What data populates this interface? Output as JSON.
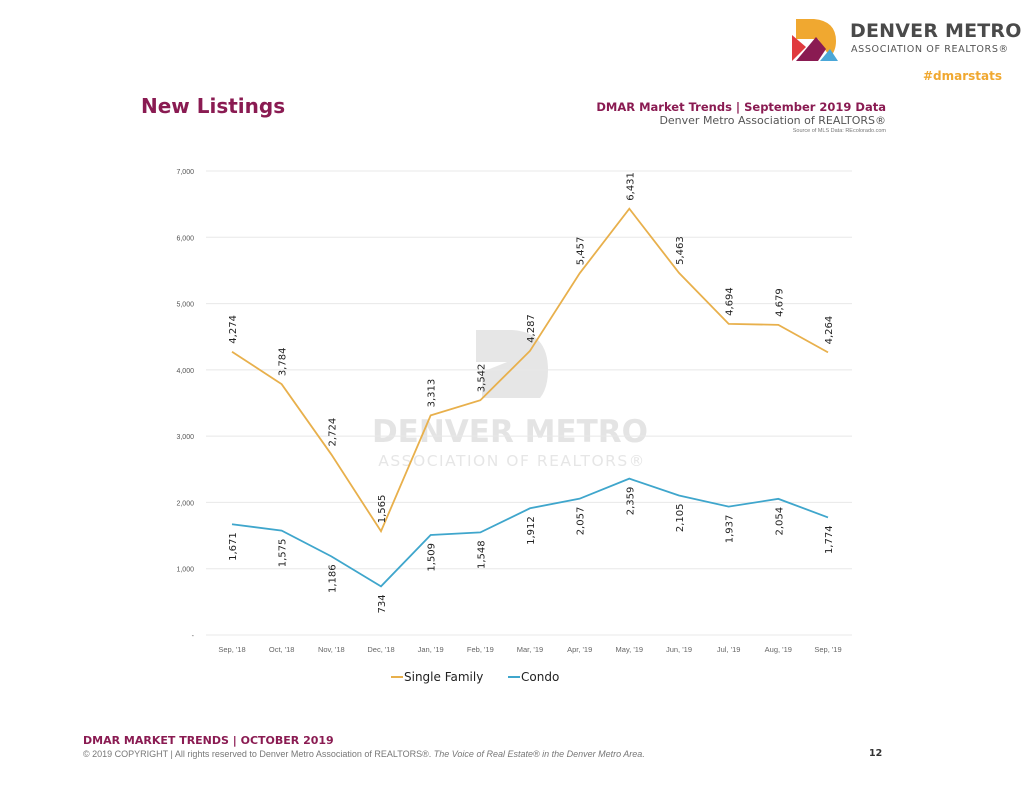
{
  "header": {
    "brand_name": "DENVER METRO",
    "brand_sub": "ASSOCIATION OF REALTORS®",
    "hashtag": "#dmarstats",
    "page_title": "New Listings",
    "report_title": "DMAR Market Trends | September 2019 Data",
    "report_sub": "Denver Metro Association of REALTORS®",
    "source": "Source of MLS Data: REcolorado.com",
    "logo_colors": {
      "orange": "#f0a830",
      "red": "#e03a3e",
      "purple": "#8a1b52",
      "blue": "#4aa7d8"
    }
  },
  "watermark": {
    "line1": "DENVER METRO",
    "line2": "ASSOCIATION OF REALTORS®"
  },
  "chart_data": {
    "type": "line",
    "title": "New Listings",
    "xlabel": "",
    "ylabel": "",
    "categories": [
      "Sep, '18",
      "Oct, '18",
      "Nov, '18",
      "Dec, '18",
      "Jan, '19",
      "Feb, '19",
      "Mar, '19",
      "Apr, '19",
      "May, '19",
      "Jun, '19",
      "Jul, '19",
      "Aug, '19",
      "Sep, '19"
    ],
    "series": [
      {
        "name": "Single Family",
        "color": "#e8b04c",
        "values": [
          4274,
          3784,
          2724,
          1565,
          3313,
          3542,
          4287,
          5457,
          6431,
          5463,
          4694,
          4679,
          4264
        ],
        "labels": [
          "4,274",
          "3,784",
          "2,724",
          "1,565",
          "3,313",
          "3,542",
          "4,287",
          "5,457",
          "6,431",
          "5,463",
          "4,694",
          "4,679",
          "4,264"
        ]
      },
      {
        "name": "Condo",
        "color": "#3fa6cc",
        "values": [
          1671,
          1575,
          1186,
          734,
          1509,
          1548,
          1912,
          2057,
          2359,
          2105,
          1937,
          2054,
          1774
        ],
        "labels": [
          "1,671",
          "1,575",
          "1,186",
          "734",
          "1,509",
          "1,548",
          "1,912",
          "2,057",
          "2,359",
          "2,105",
          "1,937",
          "2,054",
          "1,774"
        ]
      }
    ],
    "ylim": [
      0,
      7000
    ],
    "yticks": [
      0,
      1000,
      2000,
      3000,
      4000,
      5000,
      6000,
      7000
    ],
    "ytick_labels": [
      "-",
      "1,000",
      "2,000",
      "3,000",
      "4,000",
      "5,000",
      "6,000",
      "7,000"
    ],
    "grid": true,
    "legend": "bottom-center",
    "data_label_orientation": "rotated-vertical"
  },
  "footer": {
    "title": "DMAR MARKET TRENDS | OCTOBER 2019",
    "copyright": "© 2019 COPYRIGHT | All rights reserved to Denver Metro Association of REALTORS®. ",
    "tagline": "The Voice of Real Estate® in the Denver Metro Area.",
    "page_number": "12"
  }
}
